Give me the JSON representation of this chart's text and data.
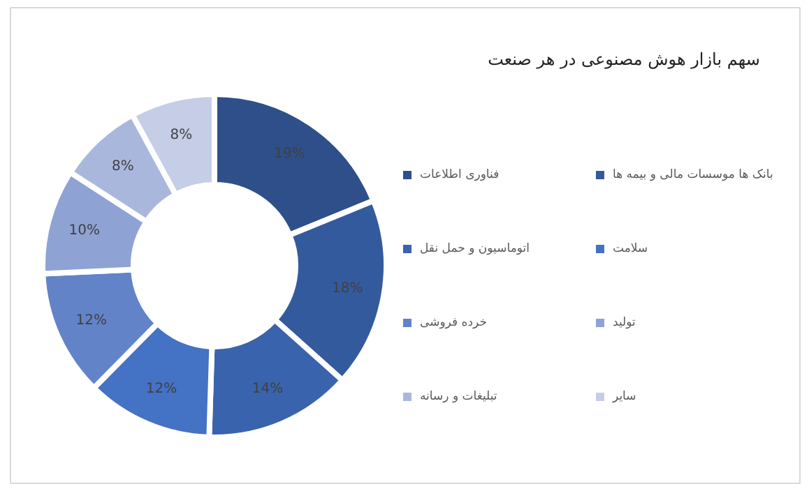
{
  "chart_data": {
    "type": "donut",
    "title": "سهم بازار هوش مصنوعی در هر صنعت",
    "categories": [
      "فناوری اطلاعات",
      "بانک ها موسسات مالی و بیمه ها",
      "اتوماسیون و حمل نقل",
      "سلامت",
      "خرده فروشی",
      "تولید",
      "تبلیغات و رسانه",
      "سایر"
    ],
    "values": [
      19,
      18,
      14,
      12,
      12,
      10,
      8,
      8
    ],
    "colors": [
      "#2f4f8a",
      "#345a9e",
      "#3a63ad",
      "#4472c4",
      "#6283c8",
      "#8fa2d4",
      "#aab7dd",
      "#c5cee6"
    ],
    "value_labels": [
      "19%",
      "18%",
      "14%",
      "12%",
      "12%",
      "10%",
      "8%",
      "8%"
    ],
    "legend": "right"
  }
}
